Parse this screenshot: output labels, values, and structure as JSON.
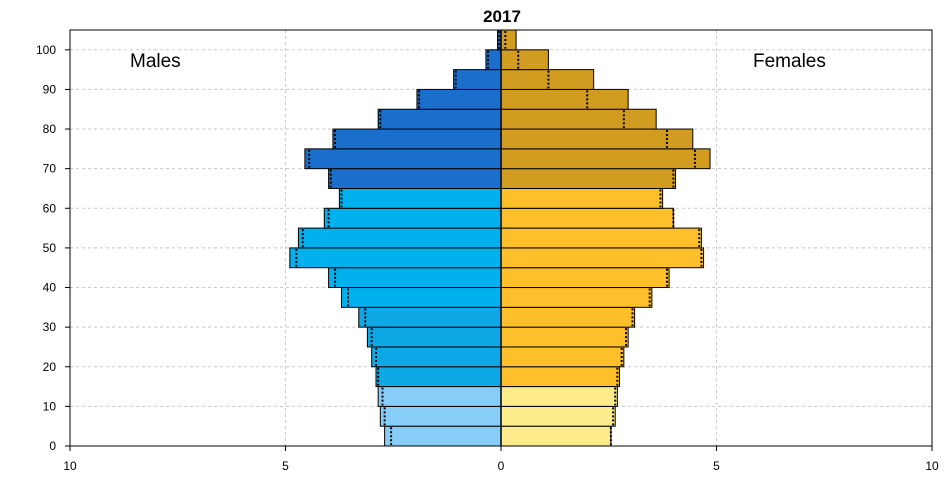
{
  "chart_data": {
    "type": "bar",
    "orientation": "horizontal",
    "title": "2017",
    "left_label": "Males",
    "right_label": "Females",
    "age_groups": [
      "0-4",
      "5-9",
      "10-14",
      "15-19",
      "20-24",
      "25-29",
      "30-34",
      "35-39",
      "40-44",
      "45-49",
      "50-54",
      "55-59",
      "60-64",
      "65-69",
      "70-74",
      "75-79",
      "80-84",
      "85-89",
      "90-94",
      "95-99",
      "100+"
    ],
    "males": [
      2.7,
      2.8,
      2.85,
      2.9,
      3.0,
      3.1,
      3.3,
      3.7,
      4.0,
      4.9,
      4.7,
      4.1,
      3.75,
      4.0,
      4.55,
      3.9,
      2.85,
      1.95,
      1.1,
      0.35,
      0.08
    ],
    "females": [
      2.55,
      2.65,
      2.7,
      2.75,
      2.85,
      2.95,
      3.1,
      3.5,
      3.9,
      4.7,
      4.65,
      4.0,
      3.75,
      4.05,
      4.85,
      4.45,
      3.6,
      2.95,
      2.15,
      1.1,
      0.35
    ],
    "males_previous": [
      2.55,
      2.7,
      2.75,
      2.85,
      2.9,
      3.0,
      3.15,
      3.55,
      3.85,
      4.75,
      4.6,
      4.0,
      3.7,
      3.95,
      4.45,
      3.85,
      2.8,
      1.9,
      1.05,
      0.3,
      0.05
    ],
    "females_previous": [
      2.55,
      2.6,
      2.65,
      2.7,
      2.8,
      2.9,
      3.05,
      3.45,
      3.85,
      4.65,
      4.6,
      4.0,
      3.7,
      4.0,
      4.5,
      3.85,
      2.85,
      2.0,
      1.1,
      0.4,
      0.1
    ],
    "x_ticks": [
      10,
      5,
      0,
      5,
      10
    ],
    "y_ticks": [
      0,
      10,
      20,
      30,
      40,
      50,
      60,
      70,
      80,
      90,
      100
    ],
    "xlim": [
      -10,
      10
    ],
    "ylim": [
      0,
      105
    ],
    "grid": true,
    "colors": {
      "male": [
        "#86cdf8",
        "#86cdf8",
        "#86cdf8",
        "#0ea8e6",
        "#0ea8e6",
        "#0ea8e6",
        "#0ea8e6",
        "#00b1ee",
        "#00b1ee",
        "#00b1ee",
        "#00b1ee",
        "#00b1ee",
        "#00b1ee",
        "#1b6fcc",
        "#1b6fcc",
        "#1b6fcc",
        "#1b6fcc",
        "#1b6fcc",
        "#1b6fcc",
        "#1b6fcc",
        "#1b6fcc"
      ],
      "female": [
        "#fdeb8c",
        "#fdeb8c",
        "#fdeb8c",
        "#fdc02a",
        "#fdc02a",
        "#fdc02a",
        "#fdc02a",
        "#fdc02a",
        "#fdc02a",
        "#fdc02a",
        "#fdc02a",
        "#fdc02a",
        "#fdc02a",
        "#d19c20",
        "#d19c20",
        "#d19c20",
        "#d19c20",
        "#d19c20",
        "#d19c20",
        "#d19c20",
        "#d19c20"
      ]
    }
  }
}
